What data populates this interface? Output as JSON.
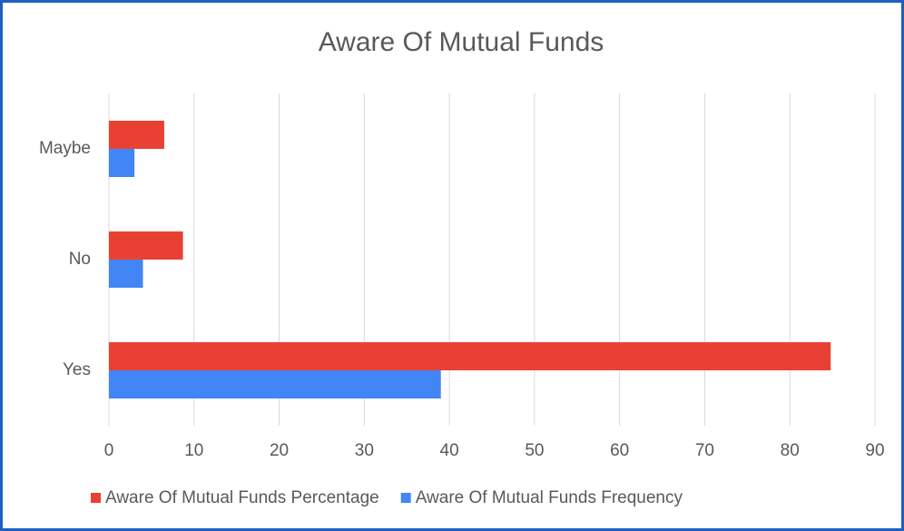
{
  "chart_data": {
    "type": "hbar",
    "title": "Aware Of Mutual Funds",
    "categories": [
      "Yes",
      "No",
      "Maybe"
    ],
    "series": [
      {
        "name": "Aware Of Mutual Funds Percentage",
        "color": "#e84133",
        "values": [
          84.8,
          8.7,
          6.5
        ]
      },
      {
        "name": "Aware Of Mutual Funds Frequency",
        "color": "#4285f4",
        "values": [
          39,
          4,
          3
        ]
      }
    ],
    "xlim": [
      0,
      90
    ],
    "xticks": [
      0,
      10,
      20,
      30,
      40,
      50,
      60,
      70,
      80,
      90
    ],
    "grid": true,
    "legend": "bottom"
  }
}
